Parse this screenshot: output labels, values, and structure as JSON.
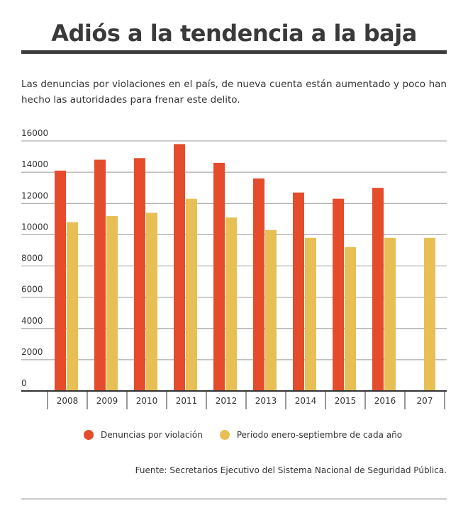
{
  "header": {
    "title": "Adiós a la tendencia a la baja",
    "subtitle": "Las denuncias por violaciones en el país, de nueva cuenta están aumentado y poco han hecho las autoridades para frenar este delito."
  },
  "footer": {
    "source": "Fuente: Secretarios Ejecutivo del Sistema Nacional de Seguridad Pública."
  },
  "colors": {
    "series_1": "#e44c2c",
    "series_2": "#e8bf54",
    "grid": "#999999",
    "axis": "#333333"
  },
  "chart_data": {
    "type": "bar",
    "title": "Adiós a la tendencia a la baja",
    "categories": [
      "2008",
      "2009",
      "2010",
      "2011",
      "2012",
      "2013",
      "2014",
      "2015",
      "2016",
      "207"
    ],
    "series": [
      {
        "name": "Denuncias por violación",
        "values": [
          14100,
          14800,
          14900,
          15800,
          14600,
          13600,
          12700,
          12300,
          13000,
          null
        ]
      },
      {
        "name": "Periodo enero-septiembre de cada año",
        "values": [
          10800,
          11200,
          11400,
          12300,
          11100,
          10300,
          9800,
          9200,
          9800,
          9800
        ]
      }
    ],
    "yticks": [
      0,
      2000,
      4000,
      6000,
      8000,
      10000,
      12000,
      14000,
      16000
    ],
    "ylim": [
      0,
      16000
    ],
    "xlabel": "",
    "ylabel": "",
    "grid": true,
    "legend": "bottom"
  }
}
